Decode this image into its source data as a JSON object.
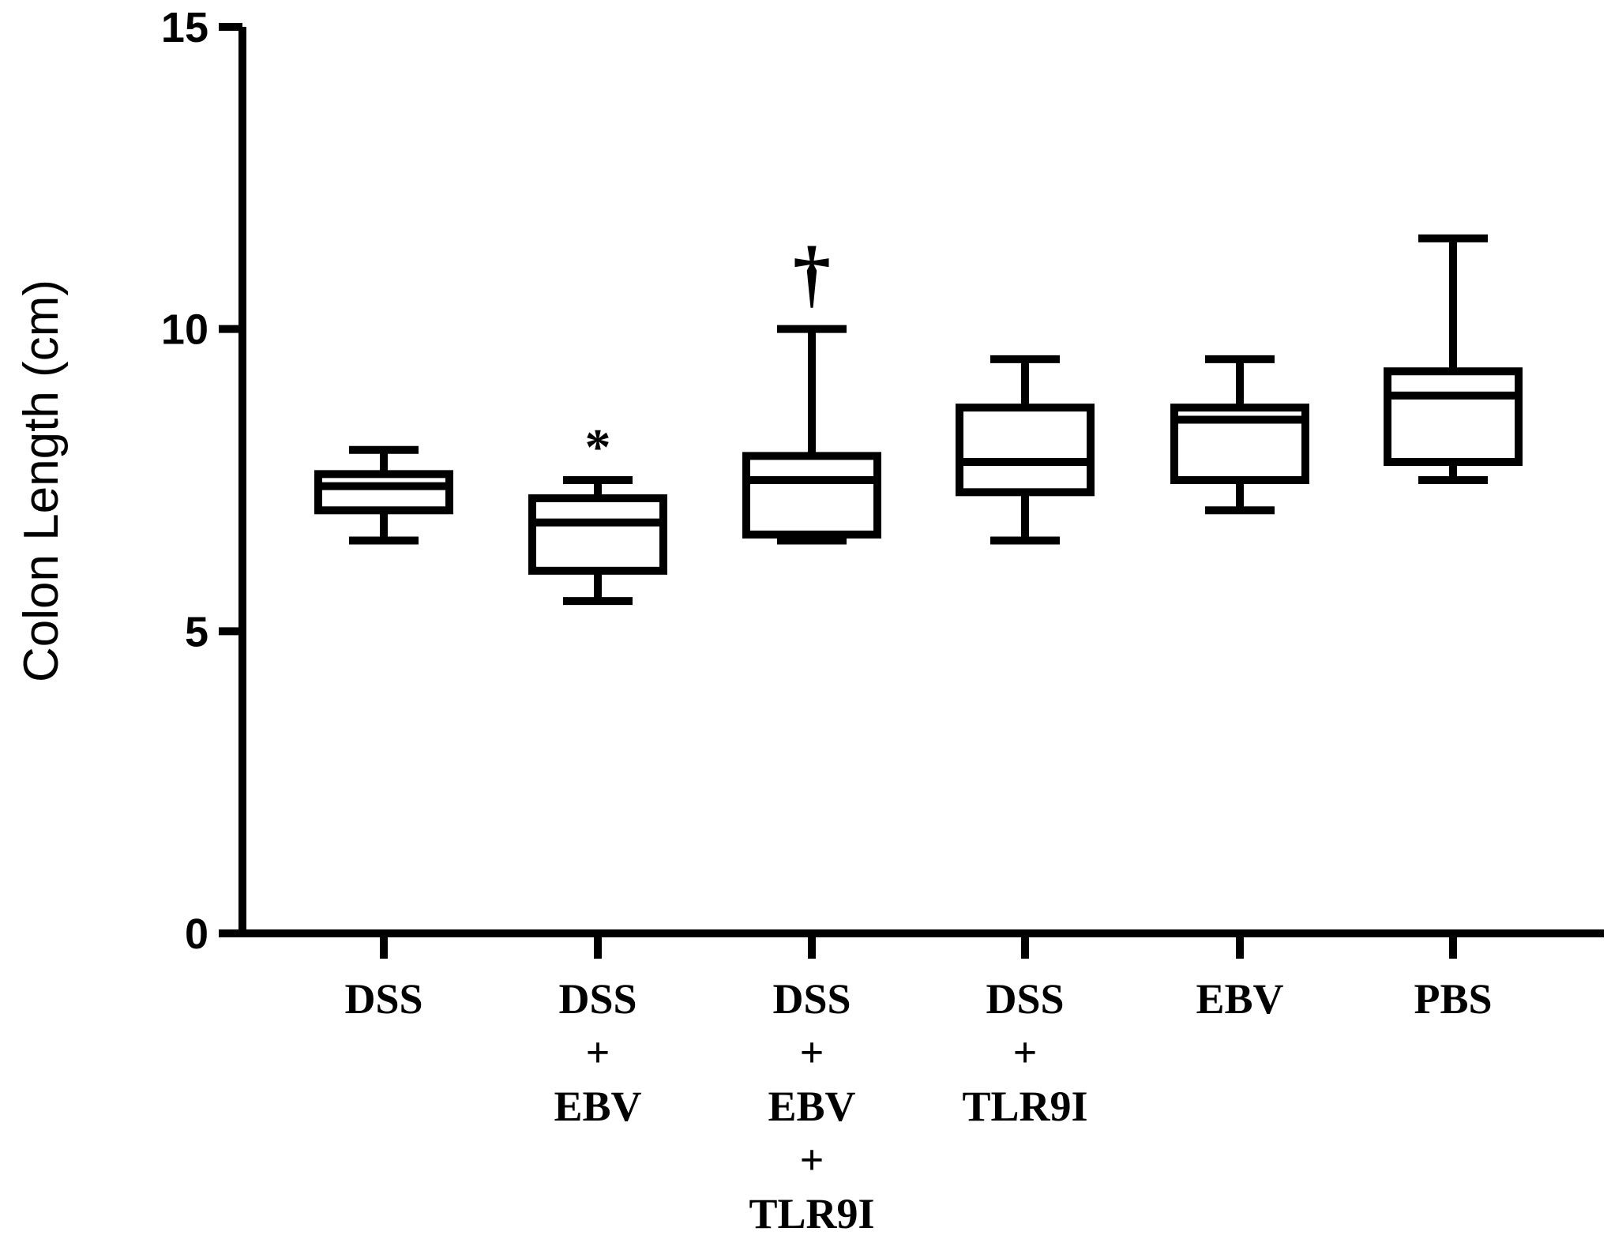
{
  "chart_data": {
    "type": "box",
    "title": "",
    "xlabel": "",
    "ylabel": "Colon Length (cm)",
    "ylim": [
      0,
      15
    ],
    "yticks": [
      0,
      5,
      10,
      15
    ],
    "ytick_labels": [
      "0",
      "5",
      "10",
      "15"
    ],
    "categories": [
      {
        "lines": [
          "DSS"
        ],
        "min": 6.5,
        "q1": 7.0,
        "median": 7.4,
        "q3": 7.6,
        "max": 8.0,
        "annotation": ""
      },
      {
        "lines": [
          "DSS",
          "+",
          "EBV"
        ],
        "min": 5.5,
        "q1": 6.0,
        "median": 6.8,
        "q3": 7.2,
        "max": 7.5,
        "annotation": "*"
      },
      {
        "lines": [
          "DSS",
          "+",
          "EBV",
          "+",
          "TLR9I"
        ],
        "min": 6.5,
        "q1": 6.6,
        "median": 7.5,
        "q3": 7.9,
        "max": 10.0,
        "annotation": "†"
      },
      {
        "lines": [
          "DSS",
          "+",
          "TLR9I"
        ],
        "min": 6.5,
        "q1": 7.3,
        "median": 7.8,
        "q3": 8.7,
        "max": 9.5,
        "annotation": ""
      },
      {
        "lines": [
          "EBV"
        ],
        "min": 7.0,
        "q1": 7.5,
        "median": 8.5,
        "q3": 8.7,
        "max": 9.5,
        "annotation": ""
      },
      {
        "lines": [
          "PBS"
        ],
        "min": 7.5,
        "q1": 7.8,
        "median": 8.9,
        "q3": 9.3,
        "max": 11.5,
        "annotation": ""
      }
    ]
  }
}
